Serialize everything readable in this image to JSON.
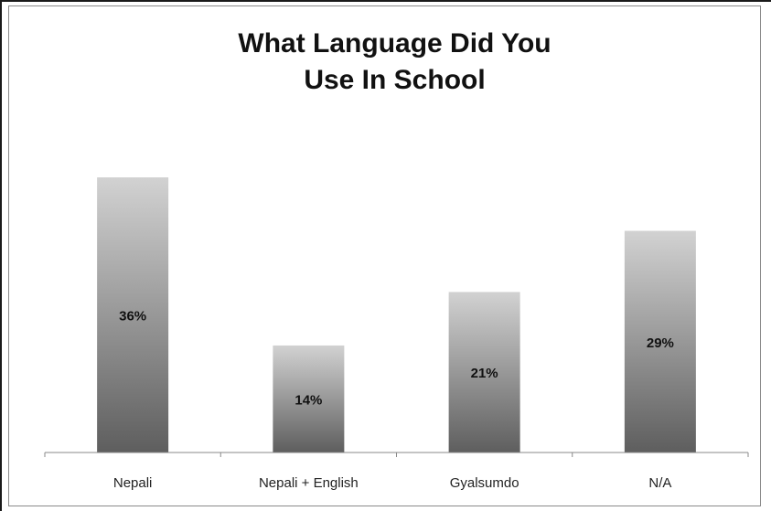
{
  "chart_data": {
    "type": "bar",
    "title_lines": [
      "What Language Did You",
      "Use In School"
    ],
    "categories": [
      "Nepali",
      "Nepali + English",
      "Gyalsumdo",
      "N/A"
    ],
    "values": [
      36,
      14,
      21,
      29
    ],
    "value_labels": [
      "36%",
      "14%",
      "21%",
      "29%"
    ],
    "ylim": [
      0,
      40
    ],
    "xlabel": "",
    "ylabel": "",
    "grid": false,
    "legend": "none",
    "bar_gradient": [
      "#d2d2d2",
      "#5e5e5e"
    ],
    "axis_color": "#888888"
  }
}
